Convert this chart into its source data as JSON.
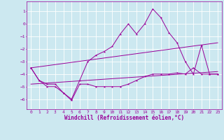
{
  "xlabel": "Windchill (Refroidissement éolien,°C)",
  "bg_color": "#cce8f0",
  "grid_color": "#ffffff",
  "line_color": "#990099",
  "xlim": [
    -0.5,
    23.5
  ],
  "ylim": [
    -6.8,
    1.8
  ],
  "yticks": [
    1,
    0,
    -1,
    -2,
    -3,
    -4,
    -5,
    -6
  ],
  "xticks": [
    0,
    1,
    2,
    3,
    4,
    5,
    6,
    7,
    8,
    9,
    10,
    11,
    12,
    13,
    14,
    15,
    16,
    17,
    18,
    19,
    20,
    21,
    22,
    23
  ],
  "series1_x": [
    0,
    1,
    2,
    3,
    4,
    5,
    6,
    7,
    8,
    9,
    10,
    11,
    12,
    13,
    14,
    15,
    16,
    17,
    18,
    19,
    20,
    21,
    22,
    23
  ],
  "series1_y": [
    -3.5,
    -4.5,
    -5.0,
    -5.0,
    -5.5,
    -6.0,
    -4.5,
    -3.0,
    -2.5,
    -2.2,
    -1.8,
    -0.8,
    0.0,
    -0.8,
    0.0,
    1.2,
    0.5,
    -0.7,
    -1.5,
    -3.0,
    -4.0,
    -1.7,
    -4.0,
    -4.0
  ],
  "series2_x": [
    0,
    1,
    2,
    3,
    4,
    5,
    6,
    7,
    8,
    9,
    10,
    11,
    12,
    13,
    14,
    15,
    16,
    17,
    18,
    19,
    20,
    21,
    22,
    23
  ],
  "series2_y": [
    -3.5,
    -4.5,
    -4.8,
    -4.8,
    -5.5,
    -6.1,
    -4.8,
    -4.8,
    -5.0,
    -5.0,
    -5.0,
    -5.0,
    -4.8,
    -4.5,
    -4.2,
    -4.0,
    -4.0,
    -4.0,
    -3.9,
    -4.0,
    -3.5,
    -4.0,
    -4.0,
    -4.0
  ],
  "series3_x": [
    0,
    23
  ],
  "series3_y": [
    -3.5,
    -1.5
  ],
  "series4_x": [
    0,
    23
  ],
  "series4_y": [
    -4.8,
    -3.8
  ],
  "xlabel_fontsize": 5.5,
  "tick_fontsize": 4.5
}
